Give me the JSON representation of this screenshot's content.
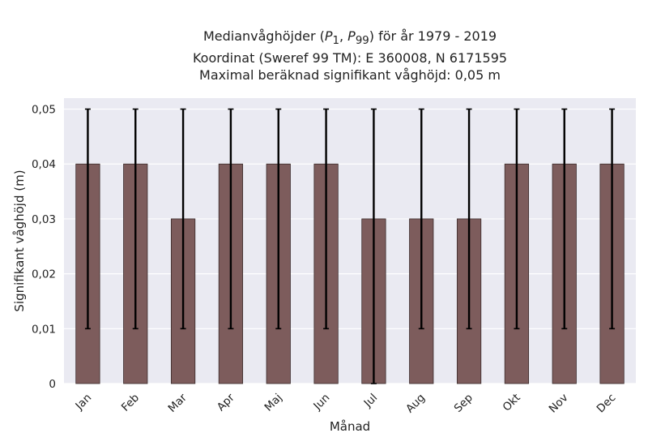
{
  "header": {
    "title_prefix": "Medianvåghöjder (",
    "title_p_a": "P",
    "title_sub_a": "1",
    "title_sep": ", ",
    "title_p_b": "P",
    "title_sub_b": "99",
    "title_suffix": ") för år 1979 - 2019",
    "subtitle_line2": "Koordinat (Sweref 99 TM): E 360008, N 6171595",
    "subtitle_line3": "Maximal beräknad signifikant våghöjd: 0,05 m"
  },
  "chart_data": {
    "type": "bar",
    "categories": [
      "Jan",
      "Feb",
      "Mar",
      "Apr",
      "Maj",
      "Jun",
      "Jul",
      "Aug",
      "Sep",
      "Okt",
      "Nov",
      "Dec"
    ],
    "series": [
      {
        "values": [
          0.04,
          0.04,
          0.03,
          0.04,
          0.04,
          0.04,
          0.03,
          0.03,
          0.03,
          0.04,
          0.04,
          0.04
        ],
        "p1": [
          0.01,
          0.01,
          0.01,
          0.01,
          0.01,
          0.01,
          0.0,
          0.01,
          0.01,
          0.01,
          0.01,
          0.01
        ],
        "p99": [
          0.05,
          0.05,
          0.05,
          0.05,
          0.05,
          0.05,
          0.05,
          0.05,
          0.05,
          0.05,
          0.05,
          0.05
        ]
      }
    ],
    "xlabel": "Månad",
    "ylabel": "Signifikant våghöjd (m)",
    "ylim": [
      0,
      0.052
    ],
    "yticks": [
      0,
      0.01,
      0.02,
      0.03,
      0.04,
      0.05
    ],
    "ytick_labels": [
      "0",
      "0,01",
      "0,02",
      "0,03",
      "0,04",
      "0,05"
    ],
    "grid": true,
    "colors": {
      "bar": "#7d5c5c",
      "bar_edge": "#3a2a2a",
      "error": "#000000",
      "plot_bg": "#eaeaf2",
      "grid": "#ffffff"
    }
  }
}
